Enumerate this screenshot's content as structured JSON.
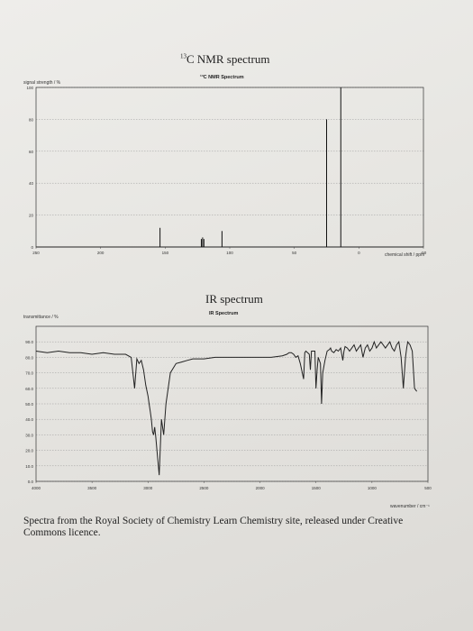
{
  "nmr": {
    "title_sup": "13",
    "title_main": "C NMR spectrum",
    "subtitle": "¹³C NMR Spectrum",
    "ylabel": "signal strength / %",
    "xlabel": "chemical shift / ppm"
  },
  "ir": {
    "title": "IR spectrum",
    "subtitle": "IR Spectrum",
    "ylabel": "transmittance / %",
    "xlabel": "wavenumber / cm⁻¹"
  },
  "caption": "Spectra from the Royal Society of Chemistry Learn Chemistry site, released under Creative Commons licence.",
  "chart_data": [
    {
      "type": "line",
      "title": "¹³C NMR Spectrum",
      "xlabel": "chemical shift / ppm",
      "ylabel": "signal strength / %",
      "xlim": [
        250,
        -50
      ],
      "ylim": [
        0,
        100
      ],
      "x_ticks": [
        "250",
        "200",
        "150",
        "100",
        "50",
        "0",
        "-50"
      ],
      "y_ticks": [
        "0",
        "20",
        "40",
        "60",
        "80",
        "100"
      ],
      "peaks": [
        {
          "x": 154,
          "y": 12
        },
        {
          "x": 122,
          "y": 5
        },
        {
          "x": 121,
          "y": 6
        },
        {
          "x": 120,
          "y": 5
        },
        {
          "x": 106,
          "y": 10
        },
        {
          "x": 25,
          "y": 80
        },
        {
          "x": 14,
          "y": 100
        }
      ]
    },
    {
      "type": "line",
      "title": "IR Spectrum",
      "xlabel": "wavenumber / cm⁻¹",
      "ylabel": "transmittance / %",
      "xlim": [
        4000,
        500
      ],
      "ylim": [
        0,
        100
      ],
      "x_ticks": [
        "4000",
        "3500",
        "3000",
        "2500",
        "2000",
        "1500",
        "1000",
        "500"
      ],
      "y_ticks": [
        "0.0",
        "10.0",
        "20.0",
        "30.0",
        "40.0",
        "50.0",
        "60.0",
        "70.0",
        "80.0",
        "90.0"
      ],
      "series": [
        {
          "x": [
            4000,
            3900,
            3800,
            3700,
            3600,
            3500,
            3400,
            3300,
            3200,
            3150,
            3120,
            3100,
            3080,
            3060,
            3040,
            3020,
            3000,
            2990,
            2980,
            2970,
            2960,
            2950,
            2940,
            2930,
            2920,
            2900,
            2880,
            2860,
            2840,
            2800,
            2750,
            2700,
            2650,
            2600,
            2500,
            2400,
            2300,
            2200,
            2100,
            2000,
            1900,
            1800,
            1760,
            1740,
            1720,
            1700,
            1680,
            1660,
            1640,
            1610,
            1600,
            1590,
            1560,
            1550,
            1540,
            1510,
            1500,
            1490,
            1480,
            1460,
            1450,
            1440,
            1420,
            1400,
            1380,
            1370,
            1360,
            1340,
            1320,
            1300,
            1280,
            1260,
            1250,
            1240,
            1220,
            1200,
            1180,
            1160,
            1140,
            1120,
            1100,
            1080,
            1060,
            1040,
            1020,
            1000,
            980,
            960,
            940,
            920,
            900,
            880,
            860,
            840,
            820,
            800,
            780,
            760,
            740,
            720,
            700,
            690,
            680,
            660,
            640,
            620,
            600
          ],
          "y": [
            84,
            83,
            84,
            83,
            83,
            82,
            83,
            82,
            82,
            80,
            60,
            79,
            76,
            78,
            72,
            62,
            55,
            50,
            45,
            40,
            32,
            30,
            35,
            28,
            20,
            4,
            40,
            30,
            50,
            70,
            76,
            77,
            78,
            79,
            79,
            80,
            80,
            80,
            80,
            80,
            80,
            81,
            82,
            83,
            83,
            82,
            80,
            81,
            76,
            66,
            83,
            84,
            82,
            72,
            84,
            84,
            60,
            72,
            80,
            76,
            50,
            70,
            78,
            84,
            85,
            86,
            84,
            83,
            85,
            84,
            86,
            78,
            84,
            87,
            86,
            84,
            86,
            88,
            84,
            86,
            88,
            80,
            86,
            88,
            84,
            86,
            90,
            86,
            88,
            90,
            88,
            86,
            88,
            90,
            86,
            84,
            88,
            90,
            80,
            60,
            80,
            86,
            90,
            88,
            84,
            60,
            58
          ]
        }
      ]
    }
  ]
}
